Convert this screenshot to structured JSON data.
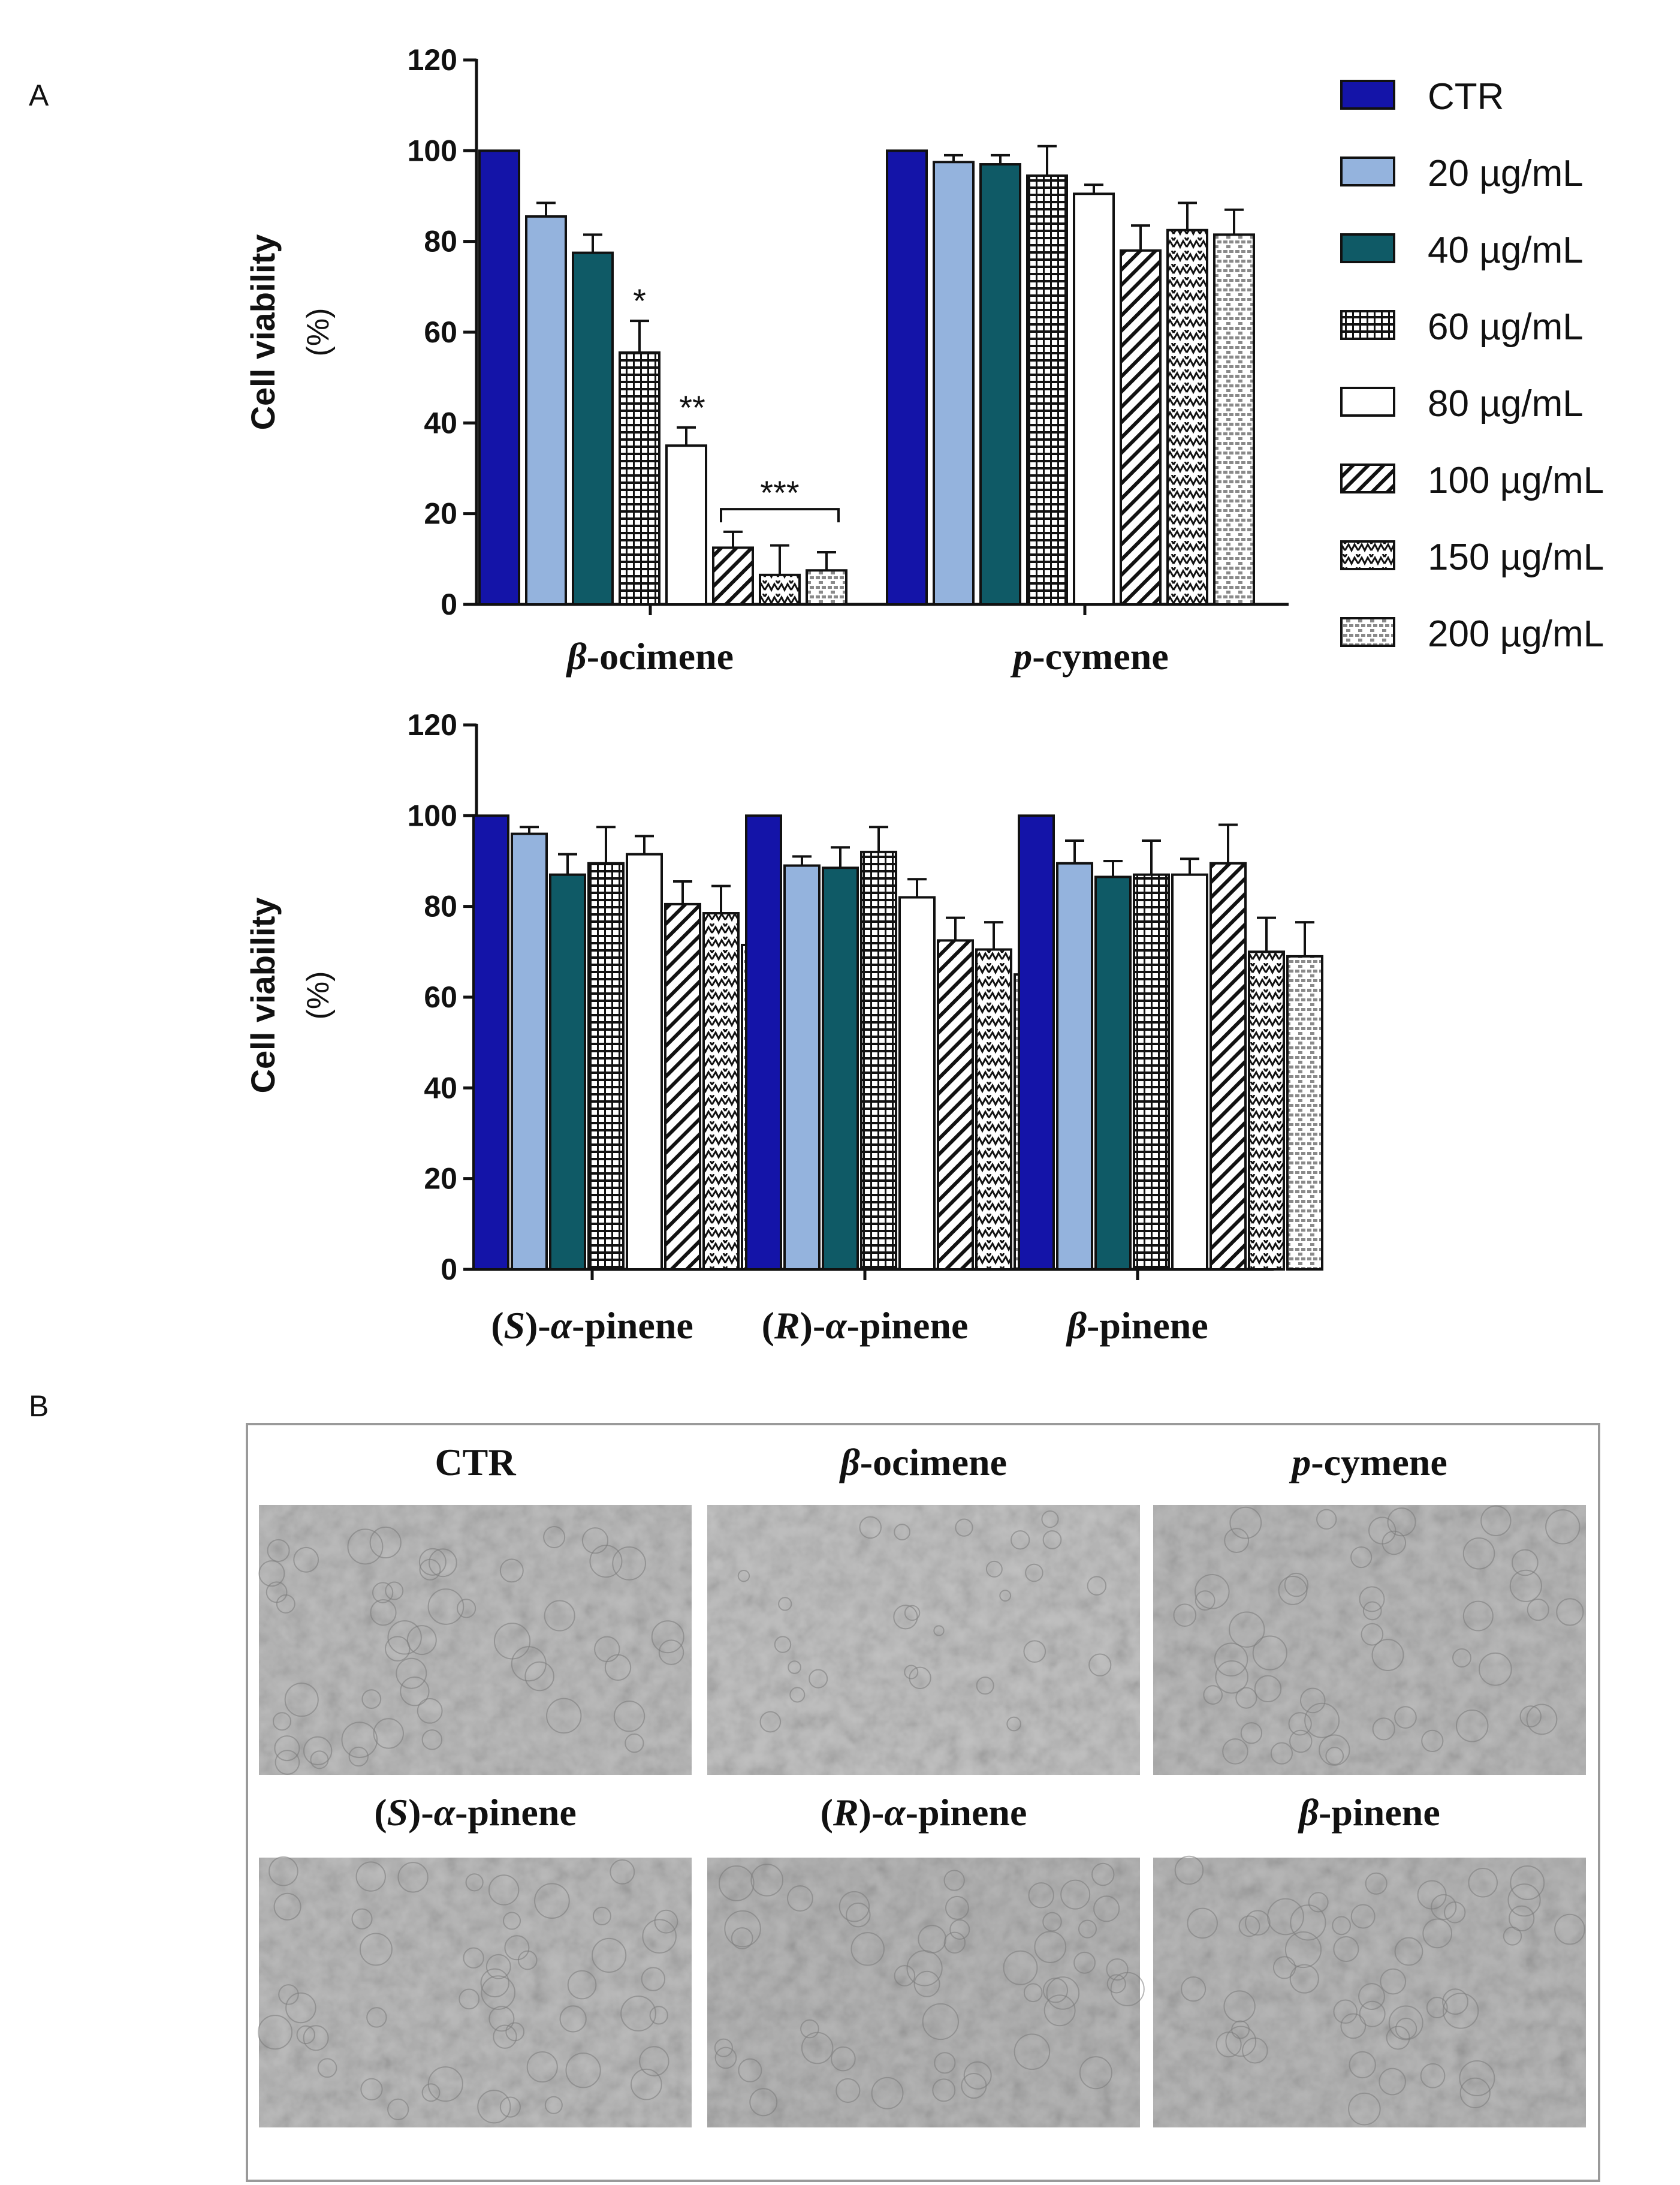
{
  "panel_labels": {
    "a": "A",
    "b": "B"
  },
  "legend": [
    {
      "label": "CTR",
      "fill": "#1414a8",
      "pattern": "solid"
    },
    {
      "label": "20 µg/mL",
      "fill": "#94b3dd",
      "pattern": "solid"
    },
    {
      "label": "40 µg/mL",
      "fill": "#0f5a66",
      "pattern": "solid"
    },
    {
      "label": "60 µg/mL",
      "fill": "#ffffff",
      "pattern": "grid"
    },
    {
      "label": "80 µg/mL",
      "fill": "#ffffff",
      "pattern": "solid"
    },
    {
      "label": "100 µg/mL",
      "fill": "#ffffff",
      "pattern": "diag"
    },
    {
      "label": "150 µg/mL",
      "fill": "#ffffff",
      "pattern": "zigzag"
    },
    {
      "label": "200 µg/mL",
      "fill": "#ffffff",
      "pattern": "brick"
    }
  ],
  "chart_data": [
    {
      "type": "bar",
      "title": "",
      "ylabel": "Cell viability",
      "ylabel_unit": "(%)",
      "ylim": [
        0,
        120
      ],
      "yticks": [
        "0",
        "20",
        "40",
        "60",
        "80",
        "100",
        "120"
      ],
      "groups": [
        {
          "name_parts": [
            {
              "t": "β",
              "it": true
            },
            {
              "t": "-ocimene",
              "it": false
            }
          ],
          "values": [
            100,
            85.5,
            77.5,
            55.5,
            35,
            12.5,
            6.5,
            7.5
          ],
          "errors": [
            0,
            3,
            4,
            7,
            4,
            3.5,
            6.5,
            4
          ]
        },
        {
          "name_parts": [
            {
              "t": "p",
              "it": true
            },
            {
              "t": "-cymene",
              "it": false
            }
          ],
          "values": [
            100,
            97.5,
            97,
            94.5,
            90.5,
            78,
            82.5,
            81.5
          ],
          "errors": [
            0,
            1.5,
            2,
            6.5,
            2,
            5.5,
            6,
            5.5
          ]
        }
      ],
      "annotations": [
        "*",
        "**",
        "***"
      ]
    },
    {
      "type": "bar",
      "title": "",
      "ylabel": "Cell viability",
      "ylabel_unit": "(%)",
      "ylim": [
        0,
        120
      ],
      "yticks": [
        "0",
        "20",
        "40",
        "60",
        "80",
        "100",
        "120"
      ],
      "groups": [
        {
          "name_parts": [
            {
              "t": "(",
              "it": false
            },
            {
              "t": "S",
              "it": true
            },
            {
              "t": ")-",
              "it": false
            },
            {
              "t": "α",
              "it": true
            },
            {
              "t": "-pinene",
              "it": false
            }
          ],
          "values": [
            100,
            96,
            87,
            89.5,
            91.5,
            80.5,
            78.5,
            71.5
          ],
          "errors": [
            0,
            1.5,
            4.5,
            8,
            4,
            5,
            6,
            4.5
          ]
        },
        {
          "name_parts": [
            {
              "t": "(",
              "it": false
            },
            {
              "t": "R",
              "it": true
            },
            {
              "t": ")-",
              "it": false
            },
            {
              "t": "α",
              "it": true
            },
            {
              "t": "-pinene",
              "it": false
            }
          ],
          "values": [
            100,
            89,
            88.5,
            92,
            82,
            72.5,
            70.5,
            65
          ],
          "errors": [
            0,
            2,
            4.5,
            5.5,
            4,
            5,
            6,
            7.5
          ]
        },
        {
          "name_parts": [
            {
              "t": "β",
              "it": true
            },
            {
              "t": "-pinene",
              "it": false
            }
          ],
          "values": [
            100,
            89.5,
            86.5,
            87,
            87,
            89.5,
            70,
            69
          ],
          "errors": [
            0,
            5,
            3.5,
            7.5,
            3.5,
            8.5,
            7.5,
            7.5
          ]
        }
      ],
      "annotations": []
    }
  ],
  "images": [
    {
      "title_parts": [
        {
          "t": "CTR",
          "it": false
        }
      ],
      "tone": "#bdbdbd"
    },
    {
      "title_parts": [
        {
          "t": "β",
          "it": true
        },
        {
          "t": "-ocimene",
          "it": false
        }
      ],
      "tone": "#c2c2c2"
    },
    {
      "title_parts": [
        {
          "t": "p",
          "it": true
        },
        {
          "t": "-cymene",
          "it": false
        }
      ],
      "tone": "#bababa"
    },
    {
      "title_parts": [
        {
          "t": "(",
          "it": false
        },
        {
          "t": "S",
          "it": true
        },
        {
          "t": ")-",
          "it": false
        },
        {
          "t": "α",
          "it": true
        },
        {
          "t": "-pinene",
          "it": false
        }
      ],
      "tone": "#bcbcbc"
    },
    {
      "title_parts": [
        {
          "t": "(",
          "it": false
        },
        {
          "t": "R",
          "it": true
        },
        {
          "t": ")-",
          "it": false
        },
        {
          "t": "α",
          "it": true
        },
        {
          "t": "-pinene",
          "it": false
        }
      ],
      "tone": "#b6b6b6"
    },
    {
      "title_parts": [
        {
          "t": "β",
          "it": true
        },
        {
          "t": "-pinene",
          "it": false
        }
      ],
      "tone": "#b8b8b8"
    }
  ]
}
